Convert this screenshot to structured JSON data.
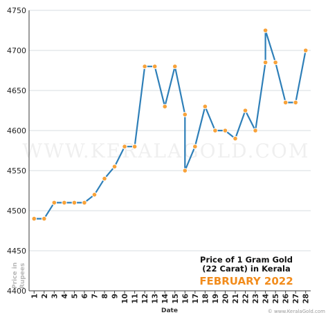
{
  "chart_data": {
    "type": "line",
    "x": [
      1,
      2,
      3,
      4,
      5,
      6,
      7,
      8,
      9,
      10,
      11,
      12,
      13,
      14,
      15,
      16,
      17,
      18,
      19,
      20,
      21,
      22,
      23,
      24,
      25,
      26,
      27,
      28
    ],
    "series": [
      {
        "segments": [
          {
            "x": 1,
            "y": 4490
          },
          {
            "x": 2,
            "y": 4490
          },
          {
            "x": 3,
            "y": 4510
          },
          {
            "x": 4,
            "y": 4510
          },
          {
            "x": 5,
            "y": 4510
          },
          {
            "x": 6,
            "y": 4510
          },
          {
            "x": 7,
            "y": 4520
          },
          {
            "x": 8,
            "y": 4540
          },
          {
            "x": 9,
            "y": 4555
          },
          {
            "x": 10,
            "y": 4580
          },
          {
            "x": 11,
            "y": 4580
          },
          {
            "x": 12,
            "y": 4680
          },
          {
            "x": 13,
            "y": 4680
          },
          {
            "x": 14,
            "y": 4630
          },
          {
            "x": 15,
            "y": 4680
          },
          {
            "x": 16,
            "y": 4620
          },
          {
            "x": 16,
            "y": 4550
          },
          {
            "x": 17,
            "y": 4580
          },
          {
            "x": 18,
            "y": 4630
          },
          {
            "x": 19,
            "y": 4600
          },
          {
            "x": 20,
            "y": 4600
          },
          {
            "x": 21,
            "y": 4590
          },
          {
            "x": 22,
            "y": 4625
          },
          {
            "x": 23,
            "y": 4600
          },
          {
            "x": 24,
            "y": 4685
          },
          {
            "x": 24,
            "y": 4725
          },
          {
            "x": 25,
            "y": 4685
          },
          {
            "x": 26,
            "y": 4635
          },
          {
            "x": 27,
            "y": 4635
          },
          {
            "x": 28,
            "y": 4700
          }
        ]
      }
    ],
    "ylim": [
      4400,
      4750
    ],
    "yticks": [
      4400,
      4450,
      4500,
      4550,
      4600,
      4650,
      4700,
      4750
    ],
    "xticks": [
      "1",
      "2",
      "3",
      "4",
      "5",
      "6",
      "7",
      "8",
      "9",
      "10",
      "11",
      "12",
      "13",
      "14",
      "15",
      "16",
      "17",
      "18",
      "19",
      "20",
      "21",
      "22",
      "23",
      "24",
      "25",
      "26",
      "27",
      "28"
    ],
    "xlabel": "Date",
    "ylabel_line1": "Price in",
    "ylabel_line2": "Rupees",
    "grid": true,
    "colors": {
      "line": "#2e7fb8",
      "marker_fill": "#f7a23a",
      "marker_stroke": "#ffffff",
      "grid": "#d7dce2",
      "axis": "#3a3a3a",
      "month_title": "#f28c1c"
    }
  },
  "annotation": {
    "line1": "Price of 1 Gram Gold",
    "line2": "(22 Carat) in Kerala",
    "month": "FEBRUARY 2022"
  },
  "watermark": "WWW.KERALAGOLD.COM",
  "credit": "© www.KeralaGold.com"
}
